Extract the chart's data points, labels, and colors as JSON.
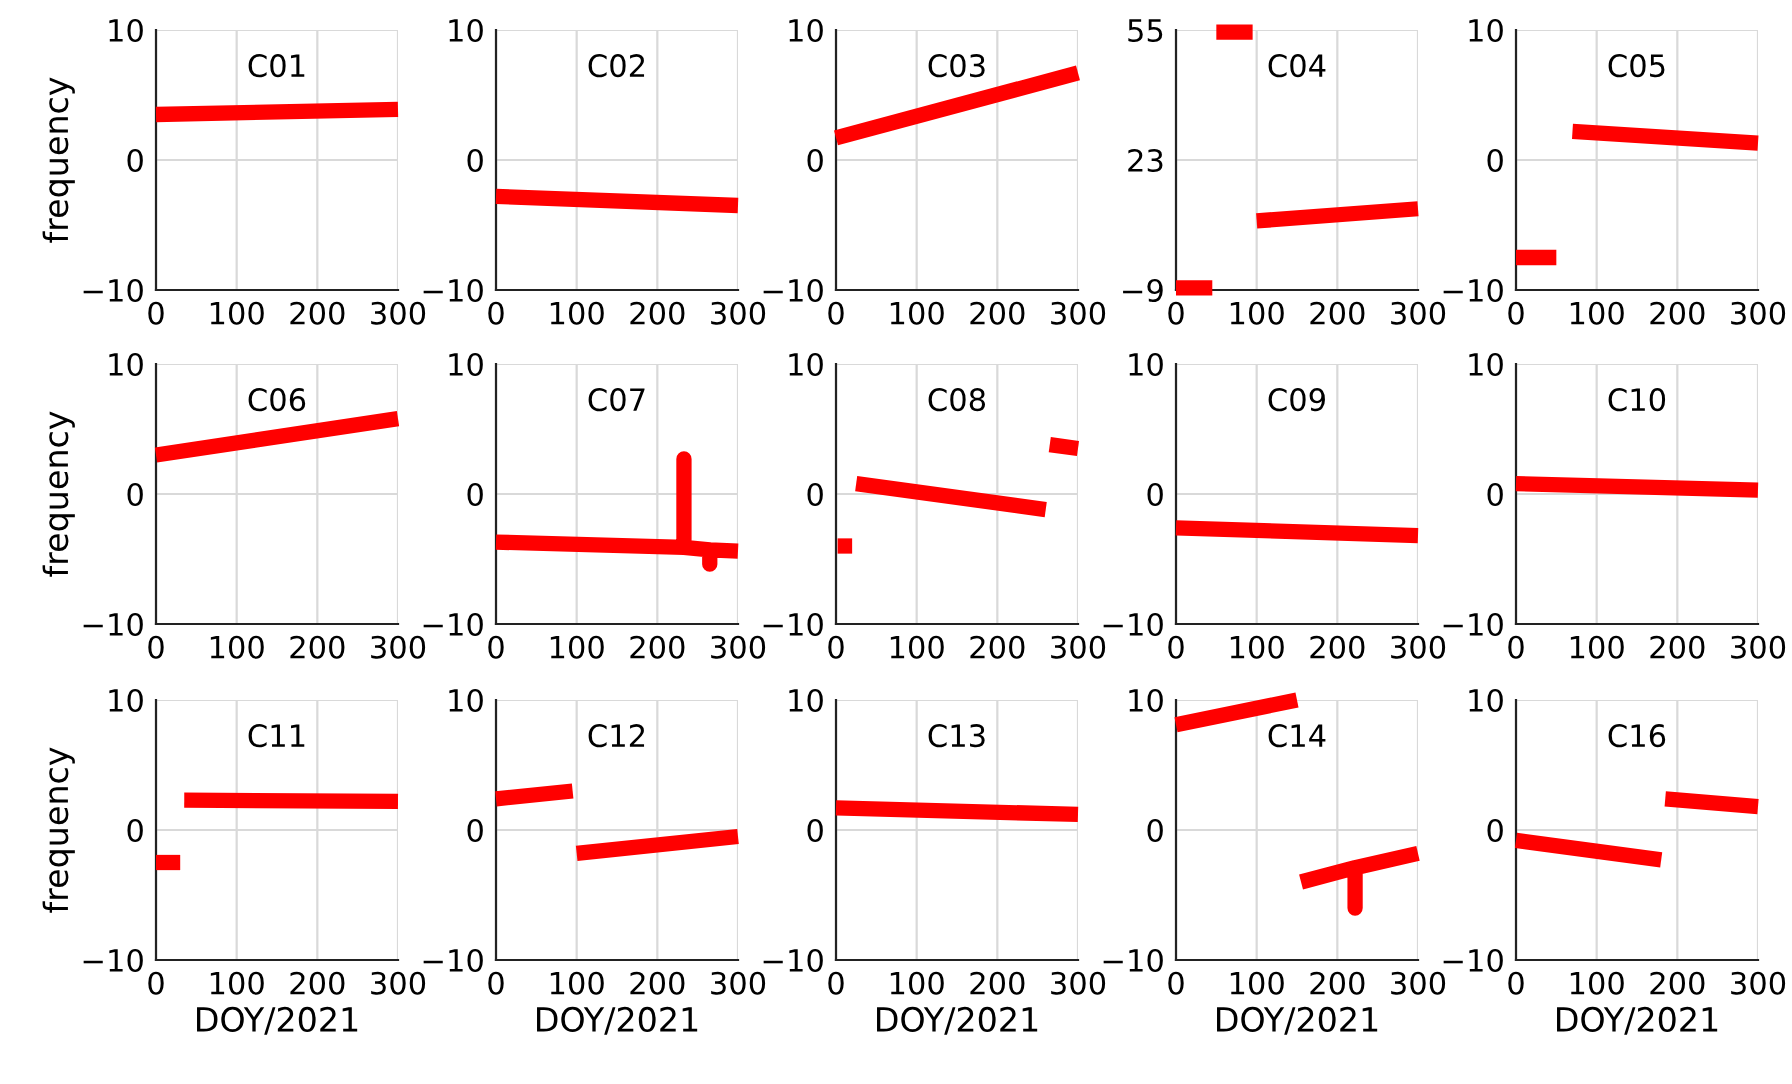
{
  "chart_data": [
    {
      "type": "line",
      "title": "C01",
      "ylabel": "frequency",
      "xlim": [
        0,
        300
      ],
      "xticks": [
        0,
        100,
        200,
        300
      ],
      "ylim": [
        -10,
        10
      ],
      "yticks": [
        -10,
        0,
        10
      ],
      "grid": true,
      "marker": "none",
      "line_style": "solid",
      "series": [
        {
          "color": "#ff0000",
          "x": [
            0,
            300
          ],
          "values": [
            3.5,
            3.9
          ]
        }
      ]
    },
    {
      "type": "line",
      "title": "C02",
      "xlim": [
        0,
        300
      ],
      "xticks": [
        0,
        100,
        200,
        300
      ],
      "ylim": [
        -10,
        10
      ],
      "yticks": [
        -10,
        0,
        10
      ],
      "grid": true,
      "marker": "none",
      "line_style": "solid",
      "series": [
        {
          "color": "#ff0000",
          "x": [
            0,
            300
          ],
          "values": [
            -2.8,
            -3.5
          ]
        }
      ]
    },
    {
      "type": "line",
      "title": "C03",
      "xlim": [
        0,
        300
      ],
      "xticks": [
        0,
        100,
        200,
        300
      ],
      "ylim": [
        -10,
        10
      ],
      "yticks": [
        -10,
        0,
        10
      ],
      "grid": true,
      "marker": "none",
      "line_style": "solid",
      "series": [
        {
          "color": "#ff0000",
          "x": [
            0,
            300
          ],
          "values": [
            1.7,
            6.7
          ]
        }
      ]
    },
    {
      "type": "line",
      "title": "C04",
      "xlim": [
        0,
        300
      ],
      "xticks": [
        0,
        100,
        200,
        300
      ],
      "ylim": [
        -9,
        55
      ],
      "yticks": [
        -9,
        23,
        55
      ],
      "grid": true,
      "marker": "none",
      "line_style": "solid",
      "series": [
        {
          "color": "#ff0000",
          "x": [
            0,
            45
          ],
          "values": [
            -8.5,
            -8.5
          ]
        },
        {
          "color": "#ff0000",
          "x": [
            50,
            95
          ],
          "values": [
            54.5,
            54.5
          ]
        },
        {
          "color": "#ff0000",
          "x": [
            100,
            300
          ],
          "values": [
            8,
            11
          ]
        }
      ]
    },
    {
      "type": "line",
      "title": "C05",
      "xlim": [
        0,
        300
      ],
      "xticks": [
        0,
        100,
        200,
        300
      ],
      "ylim": [
        -10,
        10
      ],
      "yticks": [
        -10,
        0,
        10
      ],
      "grid": true,
      "marker": "none",
      "line_style": "solid",
      "series": [
        {
          "color": "#ff0000",
          "x": [
            0,
            50
          ],
          "values": [
            -7.5,
            -7.5
          ]
        },
        {
          "color": "#ff0000",
          "x": [
            70,
            300
          ],
          "values": [
            2.2,
            1.3
          ]
        }
      ]
    },
    {
      "type": "line",
      "title": "C06",
      "ylabel": "frequency",
      "xlim": [
        0,
        300
      ],
      "xticks": [
        0,
        100,
        200,
        300
      ],
      "ylim": [
        -10,
        10
      ],
      "yticks": [
        -10,
        0,
        10
      ],
      "grid": true,
      "marker": "none",
      "line_style": "solid",
      "series": [
        {
          "color": "#ff0000",
          "x": [
            0,
            300
          ],
          "values": [
            3.0,
            5.8
          ]
        }
      ]
    },
    {
      "type": "line",
      "title": "C07",
      "xlim": [
        0,
        300
      ],
      "xticks": [
        0,
        100,
        200,
        300
      ],
      "ylim": [
        -10,
        10
      ],
      "yticks": [
        -10,
        0,
        10
      ],
      "grid": true,
      "marker": "none",
      "line_style": "solid",
      "series": [
        {
          "color": "#ff0000",
          "x": [
            0,
            233,
            233,
            233,
            265,
            265,
            265,
            300
          ],
          "values": [
            -3.7,
            -4.1,
            2.7,
            -4.1,
            -4.3,
            -5.4,
            -4.3,
            -4.4
          ]
        }
      ]
    },
    {
      "type": "line",
      "title": "C08",
      "xlim": [
        0,
        300
      ],
      "xticks": [
        0,
        100,
        200,
        300
      ],
      "ylim": [
        -10,
        10
      ],
      "yticks": [
        -10,
        0,
        10
      ],
      "grid": true,
      "marker": "none",
      "line_style": "solid",
      "series": [
        {
          "color": "#ff0000",
          "x": [
            2,
            20
          ],
          "values": [
            -4,
            -4
          ]
        },
        {
          "color": "#ff0000",
          "x": [
            25,
            260
          ],
          "values": [
            0.8,
            -1.2
          ]
        },
        {
          "color": "#ff0000",
          "x": [
            265,
            300
          ],
          "values": [
            3.8,
            3.5
          ]
        }
      ]
    },
    {
      "type": "line",
      "title": "C09",
      "xlim": [
        0,
        300
      ],
      "xticks": [
        0,
        100,
        200,
        300
      ],
      "ylim": [
        -10,
        10
      ],
      "yticks": [
        -10,
        0,
        10
      ],
      "grid": true,
      "marker": "none",
      "line_style": "solid",
      "series": [
        {
          "color": "#ff0000",
          "x": [
            0,
            300
          ],
          "values": [
            -2.6,
            -3.2
          ]
        }
      ]
    },
    {
      "type": "line",
      "title": "C10",
      "xlim": [
        0,
        300
      ],
      "xticks": [
        0,
        100,
        200,
        300
      ],
      "ylim": [
        -10,
        10
      ],
      "yticks": [
        -10,
        0,
        10
      ],
      "grid": true,
      "marker": "none",
      "line_style": "solid",
      "series": [
        {
          "color": "#ff0000",
          "x": [
            0,
            300
          ],
          "values": [
            0.8,
            0.3
          ]
        }
      ]
    },
    {
      "type": "line",
      "title": "C11",
      "xlabel": "DOY/2021",
      "ylabel": "frequency",
      "xlim": [
        0,
        300
      ],
      "xticks": [
        0,
        100,
        200,
        300
      ],
      "ylim": [
        -10,
        10
      ],
      "yticks": [
        -10,
        0,
        10
      ],
      "grid": true,
      "marker": "none",
      "line_style": "solid",
      "series": [
        {
          "color": "#ff0000",
          "x": [
            0,
            30
          ],
          "values": [
            -2.5,
            -2.5
          ]
        },
        {
          "color": "#ff0000",
          "x": [
            35,
            300
          ],
          "values": [
            2.3,
            2.2
          ]
        }
      ]
    },
    {
      "type": "line",
      "title": "C12",
      "xlabel": "DOY/2021",
      "xlim": [
        0,
        300
      ],
      "xticks": [
        0,
        100,
        200,
        300
      ],
      "ylim": [
        -10,
        10
      ],
      "yticks": [
        -10,
        0,
        10
      ],
      "grid": true,
      "marker": "none",
      "line_style": "solid",
      "series": [
        {
          "color": "#ff0000",
          "x": [
            0,
            95
          ],
          "values": [
            2.4,
            3.0
          ]
        },
        {
          "color": "#ff0000",
          "x": [
            100,
            300
          ],
          "values": [
            -1.8,
            -0.5
          ]
        }
      ]
    },
    {
      "type": "line",
      "title": "C13",
      "xlabel": "DOY/2021",
      "xlim": [
        0,
        300
      ],
      "xticks": [
        0,
        100,
        200,
        300
      ],
      "ylim": [
        -10,
        10
      ],
      "yticks": [
        -10,
        0,
        10
      ],
      "grid": true,
      "marker": "none",
      "line_style": "solid",
      "series": [
        {
          "color": "#ff0000",
          "x": [
            0,
            300
          ],
          "values": [
            1.7,
            1.2
          ]
        }
      ]
    },
    {
      "type": "line",
      "title": "C14",
      "xlabel": "DOY/2021",
      "xlim": [
        0,
        300
      ],
      "xticks": [
        0,
        100,
        200,
        300
      ],
      "ylim": [
        -10,
        10
      ],
      "yticks": [
        -10,
        0,
        10
      ],
      "grid": true,
      "marker": "none",
      "line_style": "solid",
      "series": [
        {
          "color": "#ff0000",
          "x": [
            0,
            150
          ],
          "values": [
            8.1,
            10
          ]
        },
        {
          "color": "#ff0000",
          "x": [
            155,
            222,
            222,
            222,
            300
          ],
          "values": [
            -4,
            -2.9,
            -6,
            -2.9,
            -1.8
          ]
        }
      ]
    },
    {
      "type": "line",
      "title": "C16",
      "xlabel": "DOY/2021",
      "xlim": [
        0,
        300
      ],
      "xticks": [
        0,
        100,
        200,
        300
      ],
      "ylim": [
        -10,
        10
      ],
      "yticks": [
        -10,
        0,
        10
      ],
      "grid": true,
      "marker": "none",
      "line_style": "solid",
      "series": [
        {
          "color": "#ff0000",
          "x": [
            0,
            180
          ],
          "values": [
            -0.8,
            -2.3
          ]
        },
        {
          "color": "#ff0000",
          "x": [
            185,
            300
          ],
          "values": [
            2.4,
            1.8
          ]
        }
      ]
    }
  ]
}
